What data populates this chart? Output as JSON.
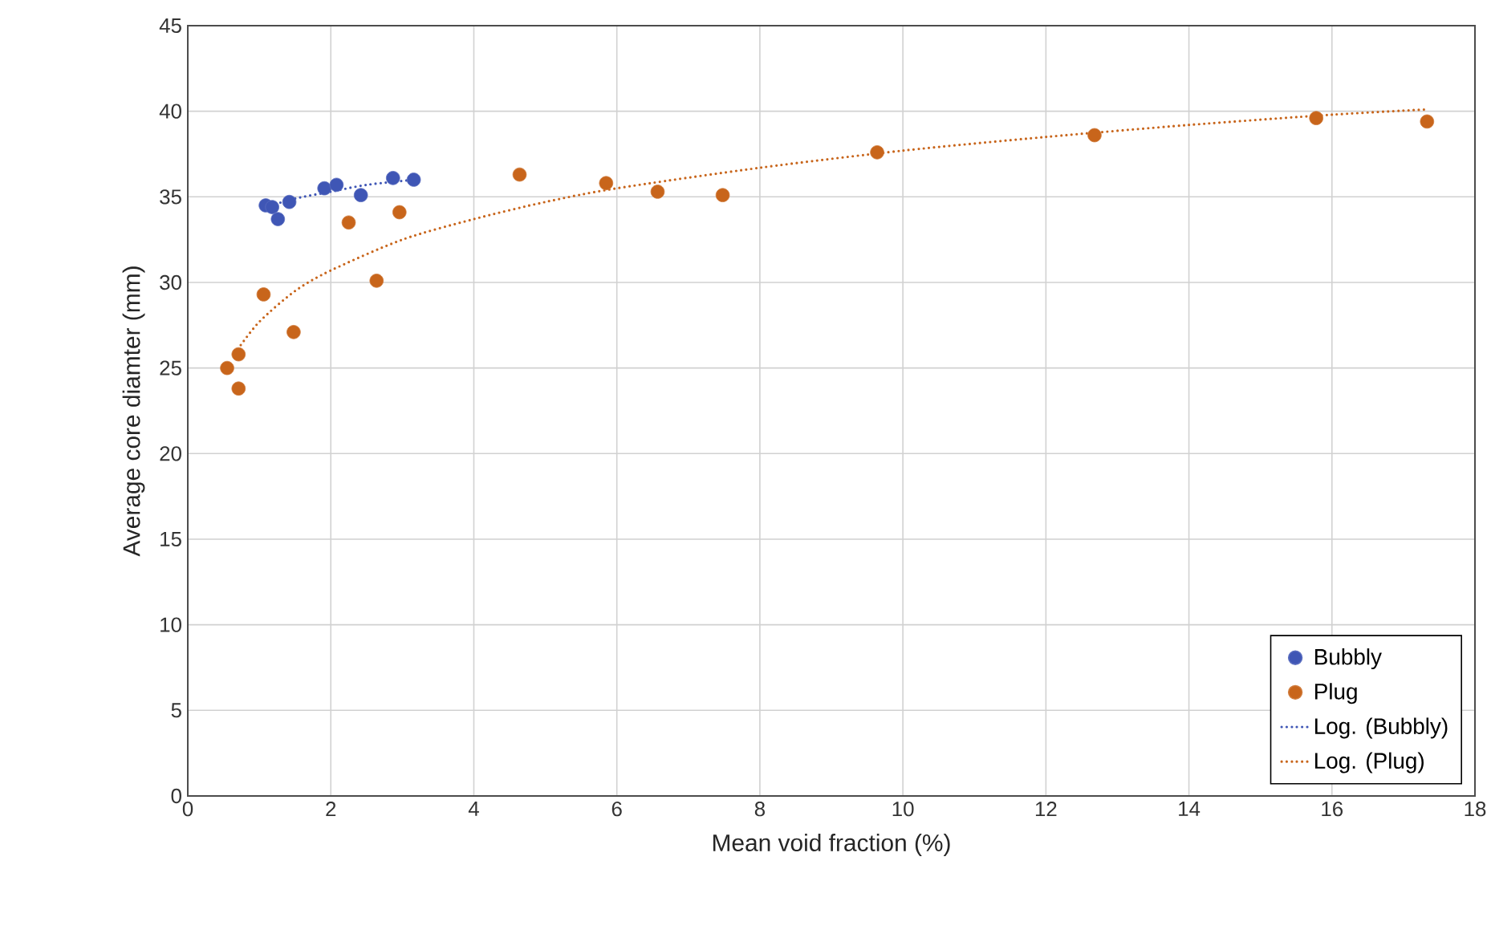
{
  "chart_data": {
    "type": "scatter",
    "xlabel": "Mean void fraction (%)",
    "ylabel": "Average core diamter (mm)",
    "xlim": [
      0,
      18
    ],
    "xticks": [
      0,
      2,
      4,
      6,
      8,
      10,
      12,
      14,
      16,
      18
    ],
    "ylim": [
      0,
      45
    ],
    "yticks": [
      0,
      5,
      10,
      15,
      20,
      25,
      30,
      35,
      40,
      45
    ],
    "grid": true,
    "legend": "bottom right",
    "series": [
      {
        "name": "Bubbly",
        "color": "#3f56b5",
        "x": [
          1.09,
          1.18,
          1.26,
          1.42,
          1.91,
          2.08,
          2.42,
          2.87,
          3.16
        ],
        "values": [
          34.5,
          34.4,
          33.7,
          34.7,
          35.5,
          35.7,
          35.1,
          36.1,
          36.0
        ]
      },
      {
        "name": "Plug",
        "color": "#c8651b",
        "x": [
          0.55,
          0.71,
          0.71,
          1.06,
          1.48,
          2.25,
          2.64,
          2.96,
          4.64,
          5.85,
          6.57,
          7.48,
          9.64,
          12.68,
          15.78,
          17.33
        ],
        "values": [
          25.0,
          25.8,
          23.8,
          29.3,
          27.1,
          33.5,
          30.1,
          34.1,
          36.3,
          35.8,
          35.3,
          35.1,
          37.6,
          38.6,
          39.6,
          39.4
        ]
      },
      {
        "name": "Log. (Bubbly)",
        "type": "line",
        "line_style": "dotted",
        "color": "#3f56b5",
        "x": [
          1.09,
          1.5,
          2,
          2.5,
          3.16
        ],
        "values": [
          34.4,
          34.9,
          35.3,
          35.7,
          36.0
        ]
      },
      {
        "name": "Log. (Plug)",
        "type": "line",
        "line_style": "dotted",
        "color": "#c8651b",
        "x": [
          0.7,
          1,
          1.5,
          2,
          3,
          4,
          5,
          6,
          8,
          10,
          12,
          14,
          16,
          17.3
        ],
        "values": [
          26.1,
          27.7,
          29.5,
          30.7,
          32.5,
          33.7,
          34.7,
          35.5,
          36.7,
          37.7,
          38.5,
          39.2,
          39.8,
          40.1
        ]
      }
    ]
  }
}
